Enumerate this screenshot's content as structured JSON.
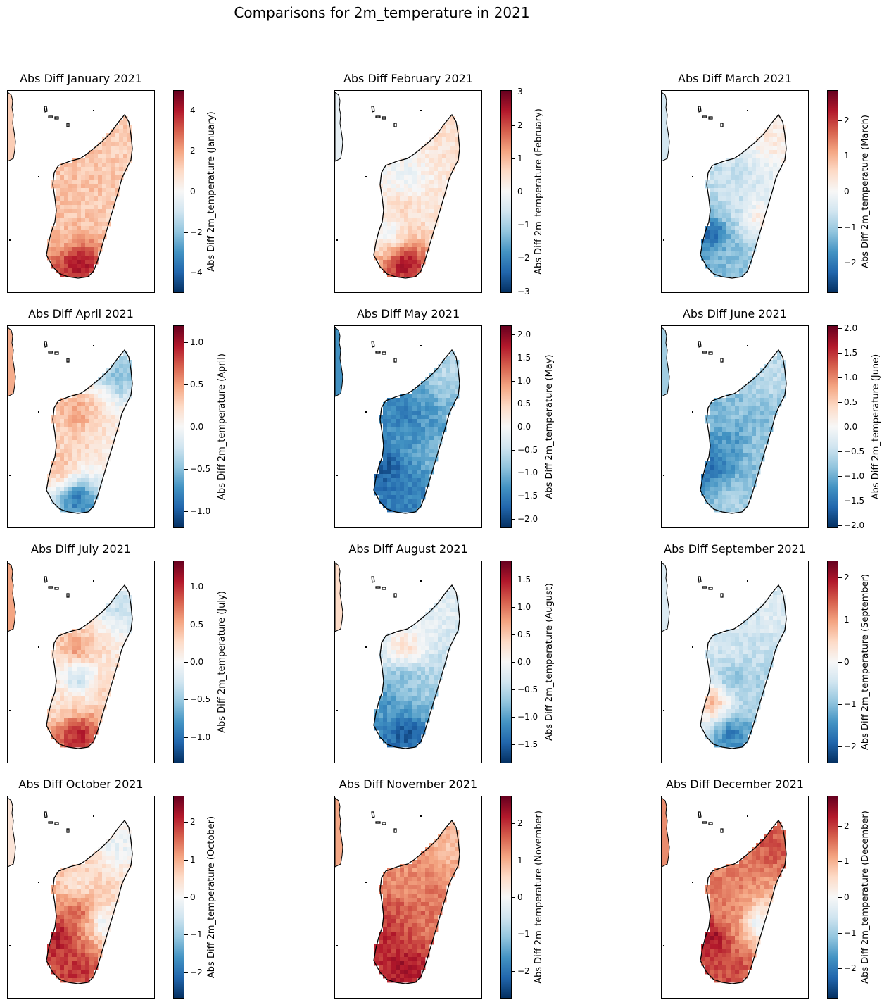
{
  "suptitle": "Comparisons for 2m_temperature in 2021",
  "colors": {
    "cmap": "RdBu_r",
    "low": "#053061",
    "mid": "#f7f7f7",
    "high": "#67001f",
    "coast": "#000000"
  },
  "chart_data": [
    {
      "type": "heatmap",
      "title": "Abs Diff January 2021",
      "colorbar_label": "Abs Diff 2m_temperature (January)",
      "vmin": -5.0,
      "vmax": 5.0,
      "ticks": [
        "4",
        "2",
        "0",
        "−2",
        "−4"
      ],
      "tick_values": [
        4,
        2,
        0,
        -2,
        -4
      ],
      "pattern": {
        "north": 1.2,
        "centre": 1.3,
        "west": 1.4,
        "south": 4.2,
        "northwest": 1.4,
        "east": 1.1
      }
    },
    {
      "type": "heatmap",
      "title": "Abs Diff February 2021",
      "colorbar_label": "Abs Diff 2m_temperature (February)",
      "vmin": -3.05,
      "vmax": 3.05,
      "ticks": [
        "3",
        "2",
        "1",
        "0",
        "−1",
        "−2",
        "−3"
      ],
      "tick_values": [
        3,
        2,
        1,
        0,
        -1,
        -2,
        -3
      ],
      "pattern": {
        "north": 0.5,
        "centre": 0.6,
        "west": -0.2,
        "south": 2.6,
        "northwest": -0.3,
        "east": 0.4
      }
    },
    {
      "type": "heatmap",
      "title": "Abs Diff March 2021",
      "colorbar_label": "Abs Diff 2m_temperature (March)",
      "vmin": -2.85,
      "vmax": 2.85,
      "ticks": [
        "2",
        "1",
        "0",
        "−1",
        "−2"
      ],
      "tick_values": [
        2,
        1,
        0,
        -1,
        -2
      ],
      "pattern": {
        "north": 0.3,
        "centre": -0.6,
        "west": -2.4,
        "south": -1.2,
        "northwest": -0.6,
        "east": 0.3
      }
    },
    {
      "type": "heatmap",
      "title": "Abs Diff April 2021",
      "colorbar_label": "Abs Diff 2m_temperature (April)",
      "vmin": -1.2,
      "vmax": 1.2,
      "ticks": [
        "1.0",
        "0.5",
        "0.0",
        "−0.5",
        "−1.0"
      ],
      "tick_values": [
        1.0,
        0.5,
        0.0,
        -0.5,
        -1.0
      ],
      "pattern": {
        "north": -0.5,
        "centre": 0.3,
        "west": 0.4,
        "south": -0.9,
        "northwest": 0.5,
        "east": 0.1
      }
    },
    {
      "type": "heatmap",
      "title": "Abs Diff May 2021",
      "colorbar_label": "Abs Diff 2m_temperature (May)",
      "vmin": -2.2,
      "vmax": 2.2,
      "ticks": [
        "2.0",
        "1.5",
        "1.0",
        "0.5",
        "0.0",
        "−0.5",
        "−1.0",
        "−1.5",
        "−2.0"
      ],
      "tick_values": [
        2.0,
        1.5,
        1.0,
        0.5,
        0.0,
        -0.5,
        -1.0,
        -1.5,
        -2.0
      ],
      "pattern": {
        "north": -0.6,
        "centre": -1.3,
        "west": -1.9,
        "south": -1.5,
        "northwest": -1.5,
        "east": -0.9
      }
    },
    {
      "type": "heatmap",
      "title": "Abs Diff June 2021",
      "colorbar_label": "Abs Diff 2m_temperature (June)",
      "vmin": -2.05,
      "vmax": 2.05,
      "ticks": [
        "2.0",
        "1.5",
        "1.0",
        "0.5",
        "0.0",
        "−0.5",
        "−1.0",
        "−1.5",
        "−2.0"
      ],
      "tick_values": [
        2.0,
        1.5,
        1.0,
        0.5,
        0.0,
        -0.5,
        -1.0,
        -1.5,
        -2.0
      ],
      "pattern": {
        "north": -0.5,
        "centre": -1.2,
        "west": -1.6,
        "south": -0.6,
        "northwest": -0.8,
        "east": -0.7
      }
    },
    {
      "type": "heatmap",
      "title": "Abs Diff July 2021",
      "colorbar_label": "Abs Diff 2m_temperature (July)",
      "vmin": -1.35,
      "vmax": 1.35,
      "ticks": [
        "1.0",
        "0.5",
        "0.0",
        "−0.5",
        "−1.0"
      ],
      "tick_values": [
        1.0,
        0.5,
        0.0,
        -0.5,
        -1.0
      ],
      "pattern": {
        "north": -0.3,
        "centre": -0.4,
        "west": 0.2,
        "south": 1.1,
        "northwest": 0.6,
        "east": 0.3
      }
    },
    {
      "type": "heatmap",
      "title": "Abs Diff August 2021",
      "colorbar_label": "Abs Diff 2m_temperature (August)",
      "vmin": -1.85,
      "vmax": 1.85,
      "ticks": [
        "1.5",
        "1.0",
        "0.5",
        "0.0",
        "−0.5",
        "−1.0",
        "−1.5"
      ],
      "tick_values": [
        1.5,
        1.0,
        0.5,
        0.0,
        -0.5,
        -1.0,
        -1.5
      ],
      "pattern": {
        "north": -0.2,
        "centre": -0.8,
        "west": -1.1,
        "south": -1.6,
        "northwest": 0.4,
        "east": -0.6
      }
    },
    {
      "type": "heatmap",
      "title": "Abs Diff September 2021",
      "colorbar_label": "Abs Diff 2m_temperature (September)",
      "vmin": -2.4,
      "vmax": 2.4,
      "ticks": [
        "2",
        "1",
        "0",
        "−1",
        "−2"
      ],
      "tick_values": [
        2,
        1,
        0,
        -1,
        -2
      ],
      "pattern": {
        "north": -0.3,
        "centre": -1.0,
        "west": 0.9,
        "south": -1.7,
        "northwest": -0.4,
        "east": -0.8
      }
    },
    {
      "type": "heatmap",
      "title": "Abs Diff October 2021",
      "colorbar_label": "Abs Diff 2m_temperature (October)",
      "vmin": -2.7,
      "vmax": 2.7,
      "ticks": [
        "2",
        "1",
        "0",
        "−1",
        "−2"
      ],
      "tick_values": [
        2,
        1,
        0,
        -1,
        -2
      ],
      "pattern": {
        "north": -0.2,
        "centre": 1.6,
        "west": 2.3,
        "south": 2.0,
        "northwest": 0.4,
        "east": -0.3
      }
    },
    {
      "type": "heatmap",
      "title": "Abs Diff November 2021",
      "colorbar_label": "Abs Diff 2m_temperature (November)",
      "vmin": -2.75,
      "vmax": 2.75,
      "ticks": [
        "2",
        "1",
        "0",
        "−1",
        "−2"
      ],
      "tick_values": [
        2,
        1,
        0,
        -1,
        -2
      ],
      "pattern": {
        "north": 0.8,
        "centre": 1.7,
        "west": 2.1,
        "south": 2.3,
        "northwest": 1.2,
        "east": 1.4
      }
    },
    {
      "type": "heatmap",
      "title": "Abs Diff December 2021",
      "colorbar_label": "Abs Diff 2m_temperature (December)",
      "vmin": -2.85,
      "vmax": 2.85,
      "ticks": [
        "2",
        "1",
        "0",
        "−1",
        "−2"
      ],
      "tick_values": [
        2,
        1,
        0,
        -1,
        -2
      ],
      "pattern": {
        "north": 1.8,
        "centre": 1.4,
        "west": 2.5,
        "south": 1.9,
        "northwest": 1.5,
        "east": -0.4
      }
    }
  ]
}
